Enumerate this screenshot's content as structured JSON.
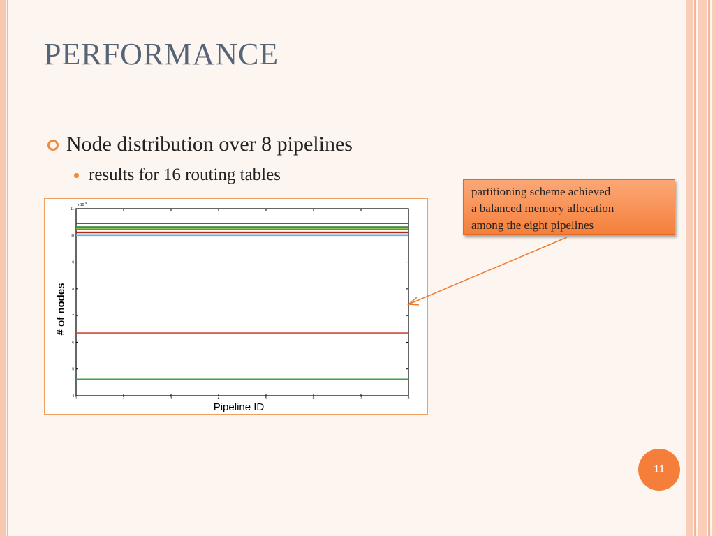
{
  "slide": {
    "title": "PERFORMANCE",
    "bullet1": "Node distribution over 8 pipelines",
    "bullet2": "results for 16 routing tables",
    "callout_lines": [
      "partitioning scheme achieved",
      "a balanced memory allocation",
      "among the eight pipelines"
    ],
    "page_number": "11",
    "accent_color": "#f57f3a"
  },
  "chart_data": {
    "type": "line",
    "xlabel": "Pipeline ID",
    "ylabel": "# of nodes",
    "x": [
      1,
      2,
      3,
      4,
      5,
      6,
      7,
      8
    ],
    "xticks": [
      "1",
      "2",
      "3",
      "4",
      "5",
      "6",
      "7",
      "8"
    ],
    "yticks": [
      "4",
      "5",
      "6",
      "7",
      "8",
      "9",
      "10",
      "11"
    ],
    "ylim": [
      4,
      11
    ],
    "xlim": [
      1,
      8
    ],
    "yscale_label": "x 10",
    "yscale_exponent": "4",
    "series": [
      {
        "color": "#1f3fbf",
        "values": [
          10.45,
          10.45,
          10.45,
          10.45,
          10.45,
          10.45,
          10.45,
          10.45
        ]
      },
      {
        "color": "#2e7d32",
        "values": [
          10.32,
          10.32,
          10.32,
          10.32,
          10.32,
          10.32,
          10.32,
          10.32
        ]
      },
      {
        "color": "#8bc34a",
        "values": [
          10.26,
          10.26,
          10.26,
          10.26,
          10.26,
          10.26,
          10.26,
          10.26
        ]
      },
      {
        "color": "#6a5acd",
        "values": [
          10.22,
          10.22,
          10.22,
          10.22,
          10.22,
          10.22,
          10.22,
          10.22
        ]
      },
      {
        "color": "#000000",
        "values": [
          10.12,
          10.12,
          10.12,
          10.12,
          10.12,
          10.12,
          10.12,
          10.12
        ]
      },
      {
        "color": "#ad2a1a",
        "values": [
          10.1,
          10.1,
          10.1,
          10.1,
          10.1,
          10.1,
          10.1,
          10.1
        ]
      },
      {
        "color": "#5ab4e8",
        "values": [
          10.0,
          10.0,
          10.0,
          10.0,
          10.0,
          10.0,
          10.0,
          10.0
        ]
      },
      {
        "color": "#d04a3a",
        "values": [
          6.35,
          6.35,
          6.35,
          6.35,
          6.35,
          6.35,
          6.35,
          6.35
        ]
      },
      {
        "color": "#3aa34a",
        "values": [
          4.62,
          4.62,
          4.62,
          4.62,
          4.62,
          4.62,
          4.62,
          4.62
        ]
      }
    ]
  }
}
